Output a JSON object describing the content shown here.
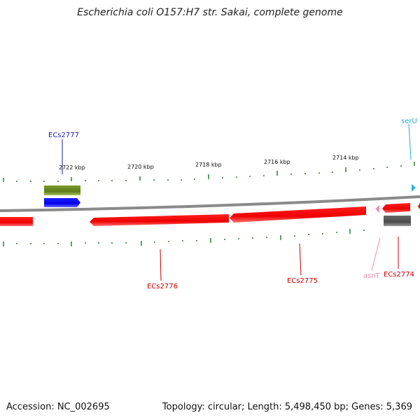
{
  "title": "Escherichia coli O157:H7 str. Sakai, complete genome",
  "footer": {
    "accession": "Accession: NC_002695",
    "summary": "Topology: circular; Length: 5,498,450 bp; Genes: 5,369"
  },
  "tick_labels": [
    "2722 kbp",
    "2720 kbp",
    "2718 kbp",
    "2716 kbp",
    "2714 kbp"
  ],
  "colors": {
    "backbone": "#8a8a8a",
    "tick": "#2e7d32",
    "cds_forward": "#1010ee",
    "cds_reverse": "#ee1111",
    "gene_forward": "#6b8e23",
    "gene_reverse": "#5a5a5a",
    "trna_forward": "#29b6d8",
    "trna_reverse": "#f48fb1"
  },
  "genes": [
    {
      "name": "ECs2777",
      "type": "CDS",
      "strand": "+",
      "label_color": "#1a1aa6"
    },
    {
      "name": "ECs2776",
      "type": "CDS",
      "strand": "-",
      "label_color": "#cc0000"
    },
    {
      "name": "ECs2775",
      "type": "CDS",
      "strand": "-",
      "label_color": "#cc0000"
    },
    {
      "name": "ECs2774",
      "type": "CDS",
      "strand": "-",
      "label_color": "#cc0000"
    },
    {
      "name": "serU",
      "type": "tRNA",
      "strand": "+",
      "label_color": "#29a9d0"
    },
    {
      "name": "asnT",
      "type": "tRNA",
      "strand": "-",
      "label_color": "#f08cb0"
    }
  ]
}
